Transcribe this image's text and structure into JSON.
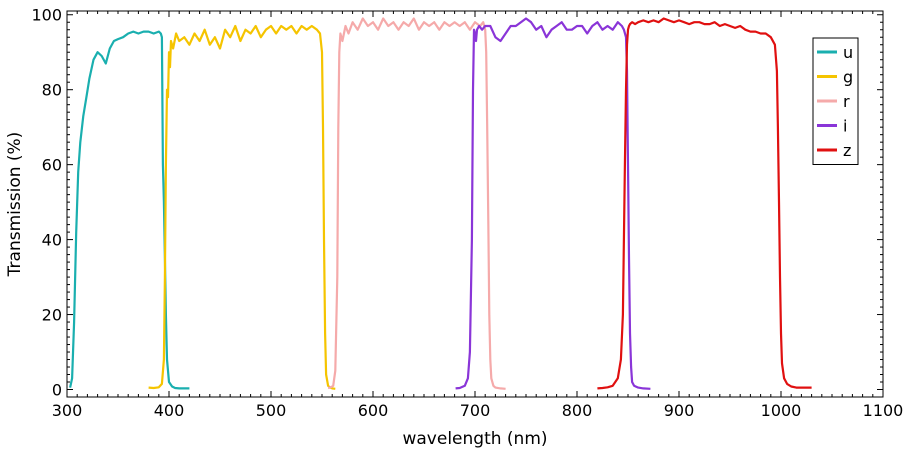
{
  "chart_data": {
    "type": "line",
    "title": "",
    "xlabel": "wavelength (nm)",
    "ylabel": "Transmission (%)",
    "xlim": [
      300,
      1100
    ],
    "ylim": [
      -2,
      101
    ],
    "xticks": [
      300,
      400,
      500,
      600,
      700,
      800,
      900,
      1000,
      1100
    ],
    "yticks": [
      0,
      20,
      40,
      60,
      80,
      100
    ],
    "grid": false,
    "legend": "top-right",
    "series": [
      {
        "name": "u",
        "color": "#1aafaf",
        "x": [
          303,
          305,
          307,
          309,
          311,
          313,
          316,
          319,
          322,
          326,
          330,
          334,
          338,
          342,
          346,
          350,
          355,
          360,
          365,
          370,
          375,
          380,
          385,
          390,
          392,
          393,
          394,
          395,
          396,
          397,
          398,
          400,
          403,
          406,
          410,
          415,
          420
        ],
        "y": [
          0.5,
          3,
          18,
          42,
          58,
          66,
          73,
          78,
          83,
          88,
          90,
          89,
          87,
          91,
          93,
          93.5,
          94,
          95,
          95.5,
          95,
          95.5,
          95.5,
          95,
          95.5,
          95,
          94,
          60,
          50,
          35,
          20,
          8,
          2,
          0.8,
          0.4,
          0.3,
          0.3,
          0.3
        ]
      },
      {
        "name": "g",
        "color": "#f5c400",
        "x": [
          380,
          385,
          390,
          393,
          395,
          396,
          397,
          398,
          399,
          400,
          401,
          402,
          404,
          407,
          410,
          415,
          420,
          425,
          430,
          435,
          440,
          445,
          450,
          455,
          460,
          465,
          470,
          475,
          480,
          485,
          490,
          495,
          500,
          505,
          510,
          515,
          520,
          525,
          530,
          535,
          540,
          545,
          548,
          550,
          551,
          552,
          553,
          554,
          556,
          558,
          560,
          563
        ],
        "y": [
          0.5,
          0.4,
          0.6,
          1.5,
          8,
          30,
          60,
          80,
          78,
          90,
          86,
          93,
          91,
          95,
          93,
          94,
          92,
          95,
          93,
          96,
          92,
          94,
          91,
          96,
          94,
          97,
          93,
          96,
          95,
          97,
          94,
          96,
          97,
          95,
          97,
          96,
          97,
          95,
          97,
          96,
          97,
          96,
          95,
          90,
          70,
          40,
          15,
          4,
          1,
          0.5,
          0.3,
          0.2
        ]
      },
      {
        "name": "r",
        "color": "#f5aaaa",
        "x": [
          556,
          558,
          561,
          563,
          565,
          566,
          567,
          568,
          570,
          573,
          576,
          580,
          585,
          590,
          595,
          600,
          605,
          610,
          615,
          620,
          625,
          630,
          635,
          640,
          645,
          650,
          655,
          660,
          665,
          670,
          675,
          680,
          685,
          690,
          695,
          700,
          705,
          708,
          710,
          711,
          712,
          713,
          714,
          715,
          716,
          718,
          720,
          725,
          730
        ],
        "y": [
          0.4,
          0.5,
          1,
          5,
          30,
          70,
          90,
          95,
          93,
          97,
          95,
          98,
          96,
          99,
          97,
          98,
          96,
          99,
          97,
          98,
          96,
          98,
          97,
          99,
          96,
          98,
          97,
          98,
          96,
          98,
          97,
          98,
          97,
          98,
          96,
          98,
          97,
          98,
          96,
          90,
          70,
          45,
          20,
          8,
          3,
          1,
          0.5,
          0.3,
          0.2
        ]
      },
      {
        "name": "i",
        "color": "#8a35d8",
        "x": [
          681,
          685,
          690,
          693,
          695,
          697,
          698,
          699,
          700,
          701,
          702,
          704,
          707,
          710,
          715,
          720,
          725,
          730,
          735,
          740,
          745,
          750,
          755,
          760,
          765,
          770,
          775,
          780,
          785,
          790,
          795,
          800,
          805,
          810,
          815,
          820,
          825,
          830,
          835,
          840,
          844,
          846,
          848,
          849,
          850,
          851,
          852,
          853,
          854,
          856,
          860,
          865,
          872
        ],
        "y": [
          0.3,
          0.4,
          1,
          3,
          10,
          40,
          80,
          96,
          95,
          93,
          96,
          97,
          96,
          97,
          97,
          94,
          93,
          95,
          97,
          97,
          98,
          99,
          98,
          96,
          97,
          94,
          96,
          97,
          98,
          96,
          96,
          97,
          97,
          95,
          97,
          98,
          96,
          97,
          96,
          98,
          97,
          96,
          94,
          85,
          60,
          35,
          15,
          6,
          2,
          1,
          0.5,
          0.3,
          0.2
        ]
      },
      {
        "name": "z",
        "color": "#e01010",
        "x": [
          820,
          825,
          830,
          835,
          840,
          843,
          845,
          846,
          847,
          848,
          849,
          850,
          851,
          852,
          854,
          857,
          860,
          865,
          870,
          875,
          880,
          885,
          890,
          895,
          900,
          905,
          910,
          915,
          920,
          925,
          930,
          935,
          940,
          945,
          950,
          955,
          960,
          965,
          970,
          975,
          980,
          985,
          990,
          994,
          996,
          997,
          998,
          999,
          1000,
          1001,
          1003,
          1006,
          1010,
          1015,
          1020,
          1030
        ],
        "y": [
          0.3,
          0.4,
          0.6,
          1,
          3,
          8,
          20,
          40,
          60,
          80,
          92,
          96,
          97,
          97.5,
          98,
          97.5,
          98,
          98.5,
          98,
          98.5,
          98,
          99,
          98.5,
          98,
          98.5,
          98,
          97.5,
          98,
          98,
          97.5,
          97.5,
          98,
          97,
          97.5,
          97,
          96.5,
          97,
          96,
          95.5,
          95.5,
          95,
          95,
          94,
          92,
          85,
          70,
          50,
          30,
          15,
          7,
          3,
          1.5,
          0.8,
          0.5,
          0.5,
          0.5
        ]
      }
    ]
  }
}
